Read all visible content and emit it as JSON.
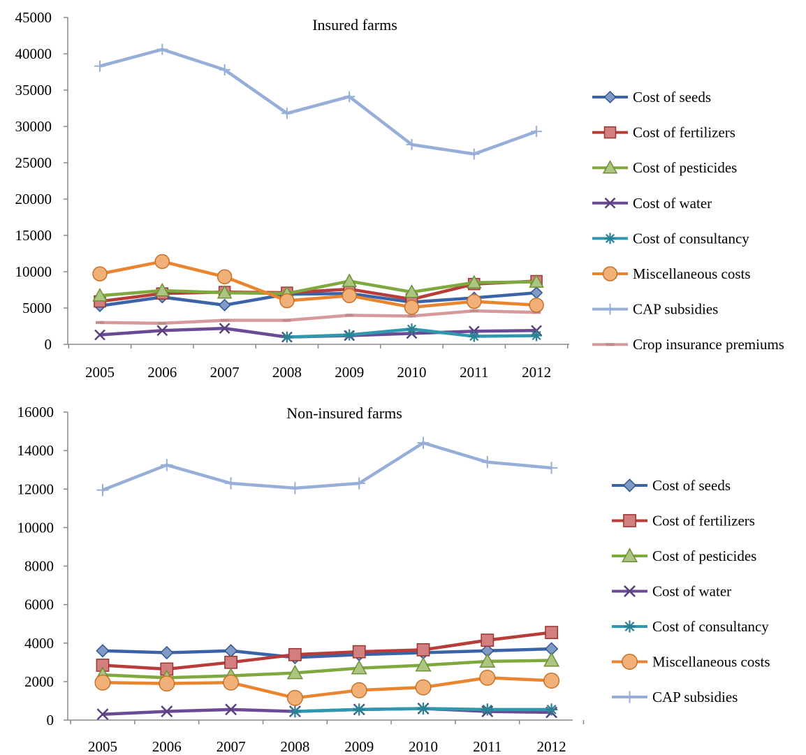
{
  "chart_data": [
    {
      "type": "line",
      "title": "Insured farms",
      "xlabel": "",
      "ylabel": "",
      "x": [
        "2005",
        "2006",
        "2007",
        "2008",
        "2009",
        "2010",
        "2011",
        "2012"
      ],
      "ylim": [
        0,
        45000
      ],
      "yticks": [
        "0",
        "5000",
        "10000",
        "15000",
        "20000",
        "25000",
        "30000",
        "35000",
        "40000",
        "45000"
      ],
      "grid": false,
      "legend_position": "right",
      "series": [
        {
          "name": "Cost of seeds",
          "color": "#3B64A8",
          "marker": "diamond",
          "values": [
            5300,
            6500,
            5400,
            6900,
            7000,
            5800,
            6400,
            7100
          ]
        },
        {
          "name": "Cost of fertilizers",
          "color": "#B83C3A",
          "marker": "square",
          "values": [
            5900,
            7000,
            7200,
            7100,
            7600,
            6200,
            8300,
            8700
          ]
        },
        {
          "name": "Cost of pesticides",
          "color": "#7FA83F",
          "marker": "triangle",
          "values": [
            6700,
            7400,
            7100,
            7000,
            8700,
            7200,
            8500,
            8600
          ]
        },
        {
          "name": "Cost of water",
          "color": "#6A4A94",
          "marker": "x",
          "values": [
            1300,
            1900,
            2200,
            1000,
            1200,
            1500,
            1800,
            1900
          ]
        },
        {
          "name": "Cost of consultancy",
          "color": "#3098AE",
          "marker": "star",
          "values": [
            null,
            null,
            null,
            1000,
            1300,
            2100,
            1100,
            1200
          ]
        },
        {
          "name": "Miscellaneous costs",
          "color": "#E9852E",
          "marker": "circle",
          "values": [
            9700,
            11400,
            9300,
            6000,
            6700,
            5100,
            5900,
            5400
          ]
        },
        {
          "name": "CAP subsidies",
          "color": "#97AFD8",
          "marker": "plus",
          "values": [
            38300,
            40600,
            37800,
            31800,
            34100,
            27500,
            26200,
            29300
          ]
        },
        {
          "name": "Crop insurance premiums",
          "color": "#D69A9C",
          "marker": "dash",
          "values": [
            3000,
            2900,
            3300,
            3300,
            4000,
            3900,
            4600,
            4400
          ]
        }
      ]
    },
    {
      "type": "line",
      "title": "Non-insured farms",
      "xlabel": "",
      "ylabel": "",
      "x": [
        "2005",
        "2006",
        "2007",
        "2008",
        "2009",
        "2010",
        "2011",
        "2012"
      ],
      "ylim": [
        0,
        16000
      ],
      "yticks": [
        "0",
        "2000",
        "4000",
        "6000",
        "8000",
        "10000",
        "12000",
        "14000",
        "16000"
      ],
      "grid": false,
      "legend_position": "right",
      "series": [
        {
          "name": "Cost of seeds",
          "color": "#3B64A8",
          "marker": "diamond",
          "values": [
            3600,
            3500,
            3600,
            3250,
            3400,
            3500,
            3600,
            3700
          ]
        },
        {
          "name": "Cost of fertilizers",
          "color": "#B83C3A",
          "marker": "square",
          "values": [
            2850,
            2650,
            3000,
            3400,
            3550,
            3650,
            4150,
            4550
          ]
        },
        {
          "name": "Cost of pesticides",
          "color": "#7FA83F",
          "marker": "triangle",
          "values": [
            2350,
            2200,
            2300,
            2450,
            2700,
            2850,
            3050,
            3100
          ]
        },
        {
          "name": "Cost of water",
          "color": "#6A4A94",
          "marker": "x",
          "values": [
            300,
            450,
            550,
            450,
            550,
            600,
            450,
            400
          ]
        },
        {
          "name": "Cost of consultancy",
          "color": "#3098AE",
          "marker": "star",
          "values": [
            null,
            null,
            null,
            450,
            550,
            600,
            550,
            550
          ]
        },
        {
          "name": "Miscellaneous costs",
          "color": "#E9852E",
          "marker": "circle",
          "values": [
            1950,
            1900,
            1950,
            1150,
            1550,
            1700,
            2200,
            2050
          ]
        },
        {
          "name": "CAP subsidies",
          "color": "#97AFD8",
          "marker": "plus",
          "values": [
            11950,
            13250,
            12300,
            12050,
            12300,
            14400,
            13400,
            13100
          ]
        }
      ]
    }
  ]
}
